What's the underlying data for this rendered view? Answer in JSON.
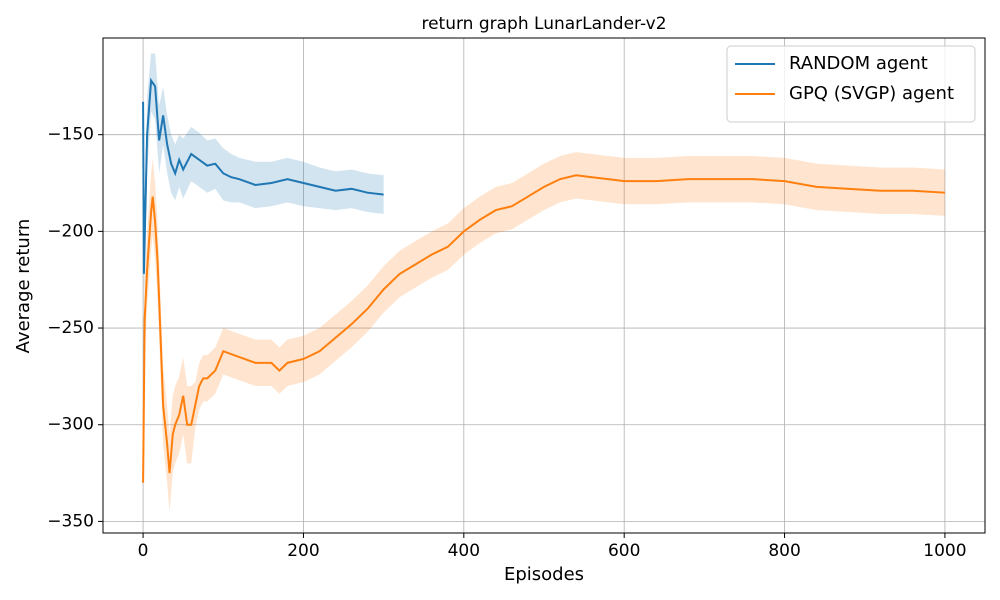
{
  "chart_data": {
    "type": "line",
    "title": "return graph LunarLander-v2",
    "x_label": "Episodes",
    "y_label": "Average return",
    "xlim": [
      -50,
      1050
    ],
    "ylim": [
      -356,
      -100
    ],
    "xticks": [
      0,
      200,
      400,
      600,
      800,
      1000
    ],
    "yticks": [
      {
        "value": -350,
        "label": "−350"
      },
      {
        "value": -300,
        "label": "−300"
      },
      {
        "value": -250,
        "label": "−250"
      },
      {
        "value": -200,
        "label": "−200"
      },
      {
        "value": -150,
        "label": "−150"
      }
    ],
    "grid": true,
    "legend": "upper right",
    "series": [
      {
        "name": "RANDOM agent",
        "color": "#1f77b4",
        "x": [
          0,
          1,
          5,
          10,
          15,
          20,
          25,
          30,
          35,
          40,
          45,
          50,
          60,
          70,
          80,
          90,
          100,
          110,
          120,
          140,
          160,
          180,
          200,
          220,
          240,
          260,
          280,
          300
        ],
        "values": [
          -133,
          -222,
          -150,
          -122,
          -125,
          -153,
          -140,
          -155,
          -165,
          -170,
          -163,
          -168,
          -160,
          -163,
          -166,
          -165,
          -170,
          -172,
          -173,
          -176,
          -175,
          -173,
          -175,
          -177,
          -179,
          -178,
          -180,
          -181
        ],
        "upper": [
          -133,
          -205,
          -130,
          -108,
          -108,
          -135,
          -125,
          -140,
          -150,
          -155,
          -150,
          -152,
          -146,
          -149,
          -153,
          -152,
          -157,
          -160,
          -162,
          -164,
          -164,
          -162,
          -164,
          -167,
          -169,
          -168,
          -170,
          -171
        ],
        "lower": [
          -133,
          -240,
          -170,
          -138,
          -142,
          -170,
          -155,
          -170,
          -180,
          -184,
          -177,
          -183,
          -174,
          -177,
          -180,
          -178,
          -184,
          -185,
          -185,
          -188,
          -187,
          -185,
          -187,
          -188,
          -189,
          -188,
          -190,
          -191
        ]
      },
      {
        "name": "GPQ (SVGP) agent",
        "color": "#ff7f0e",
        "x": [
          0,
          2,
          5,
          10,
          12,
          15,
          18,
          20,
          25,
          30,
          33,
          37,
          40,
          45,
          50,
          55,
          60,
          65,
          70,
          75,
          80,
          90,
          100,
          120,
          140,
          160,
          170,
          180,
          200,
          220,
          240,
          260,
          280,
          300,
          320,
          340,
          360,
          380,
          400,
          420,
          440,
          460,
          480,
          500,
          520,
          540,
          560,
          580,
          600,
          640,
          680,
          720,
          760,
          800,
          840,
          880,
          920,
          960,
          1000
        ],
        "values": [
          -330,
          -245,
          -220,
          -190,
          -182,
          -195,
          -215,
          -235,
          -290,
          -310,
          -325,
          -305,
          -300,
          -295,
          -285,
          -300,
          -300,
          -290,
          -280,
          -276,
          -276,
          -272,
          -262,
          -265,
          -268,
          -268,
          -272,
          -268,
          -266,
          -262,
          -255,
          -248,
          -240,
          -230,
          -222,
          -217,
          -212,
          -208,
          -200,
          -194,
          -189,
          -187,
          -182,
          -177,
          -173,
          -171,
          -172,
          -173,
          -174,
          -174,
          -173,
          -173,
          -173,
          -174,
          -177,
          -178,
          -179,
          -179,
          -180
        ],
        "upper": [
          -330,
          -225,
          -200,
          -170,
          -162,
          -175,
          -195,
          -215,
          -270,
          -290,
          -305,
          -285,
          -280,
          -275,
          -265,
          -280,
          -280,
          -278,
          -268,
          -264,
          -264,
          -260,
          -250,
          -253,
          -256,
          -256,
          -260,
          -256,
          -254,
          -250,
          -243,
          -236,
          -228,
          -218,
          -210,
          -205,
          -200,
          -196,
          -188,
          -182,
          -177,
          -175,
          -170,
          -165,
          -161,
          -159,
          -160,
          -161,
          -162,
          -162,
          -161,
          -161,
          -161,
          -162,
          -165,
          -166,
          -167,
          -167,
          -168
        ],
        "lower": [
          -330,
          -265,
          -240,
          -210,
          -202,
          -215,
          -235,
          -255,
          -310,
          -330,
          -345,
          -325,
          -320,
          -315,
          -305,
          -320,
          -320,
          -302,
          -292,
          -288,
          -288,
          -284,
          -274,
          -277,
          -280,
          -280,
          -284,
          -280,
          -278,
          -274,
          -267,
          -260,
          -252,
          -242,
          -234,
          -229,
          -224,
          -220,
          -212,
          -206,
          -201,
          -199,
          -194,
          -189,
          -185,
          -183,
          -184,
          -185,
          -186,
          -186,
          -185,
          -185,
          -185,
          -186,
          -189,
          -190,
          -191,
          -191,
          -192
        ]
      }
    ]
  }
}
